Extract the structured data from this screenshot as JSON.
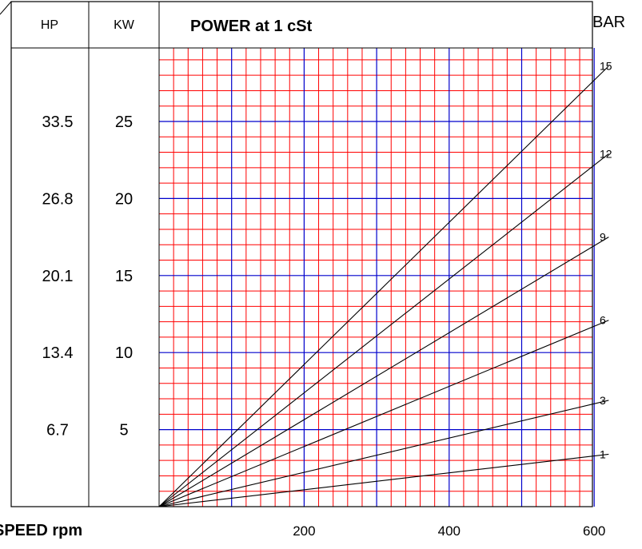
{
  "chart_data": {
    "type": "line",
    "title": "POWER  at 1 cSt",
    "xlabel": "SPEED rpm",
    "x_ticks": [
      "200",
      "400",
      "600"
    ],
    "x_range": [
      0,
      620
    ],
    "y_range_kw": [
      0,
      30
    ],
    "columns": {
      "hp_header": "HP",
      "kw_header": "KW",
      "bar_header": "BAR"
    },
    "y_ticks_kw": [
      "25",
      "20",
      "15",
      "10",
      "5"
    ],
    "y_ticks_hp": [
      "33.5",
      "26.8",
      "20.1",
      "13.4",
      "6.7"
    ],
    "series_unit": "BAR",
    "series": [
      {
        "name": "15",
        "x": [
          0,
          620
        ],
        "y": [
          0,
          28.6
        ]
      },
      {
        "name": "12",
        "x": [
          0,
          620
        ],
        "y": [
          0,
          22.9
        ]
      },
      {
        "name": "9",
        "x": [
          0,
          620
        ],
        "y": [
          0,
          17.5
        ]
      },
      {
        "name": "6",
        "x": [
          0,
          620
        ],
        "y": [
          0,
          12.1
        ]
      },
      {
        "name": "3",
        "x": [
          0,
          620
        ],
        "y": [
          0,
          6.9
        ]
      },
      {
        "name": "1",
        "x": [
          0,
          620
        ],
        "y": [
          0,
          3.4
        ]
      }
    ],
    "grid": true,
    "colors": {
      "minor_grid": "#ff0000",
      "major_grid": "#0000cc",
      "series_line": "#000000",
      "frame": "#000000"
    }
  }
}
